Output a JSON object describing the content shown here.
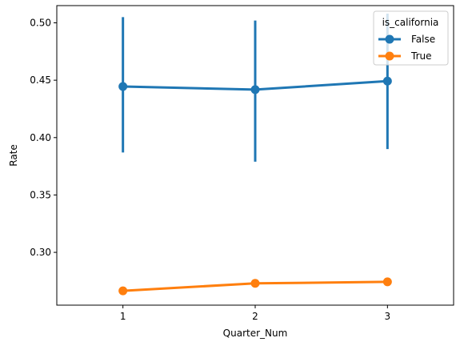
{
  "chart_data": {
    "type": "line",
    "title": "",
    "xlabel": "Quarter_Num",
    "ylabel": "Rate",
    "categories": [
      "1",
      "2",
      "3"
    ],
    "xlim": [
      0.5,
      3.5
    ],
    "ylim": [
      0.254,
      0.515
    ],
    "yticks": [
      0.3,
      0.35,
      0.4,
      0.45,
      0.5
    ],
    "ytick_labels": [
      "0.30",
      "0.35",
      "0.40",
      "0.45",
      "0.50"
    ],
    "grid": false,
    "legend": {
      "title": "is_california",
      "position": "top-right"
    },
    "series": [
      {
        "name": "False",
        "color": "#1f77b4",
        "values": [
          0.4445,
          0.4418,
          0.4492
        ],
        "ci_low": [
          0.387,
          0.379,
          0.39
        ],
        "ci_high": [
          0.505,
          0.502,
          0.508
        ]
      },
      {
        "name": "True",
        "color": "#ff7f0e",
        "values": [
          0.2665,
          0.273,
          0.2743
        ],
        "ci_low": [
          null,
          null,
          null
        ],
        "ci_high": [
          null,
          null,
          null
        ]
      }
    ]
  }
}
